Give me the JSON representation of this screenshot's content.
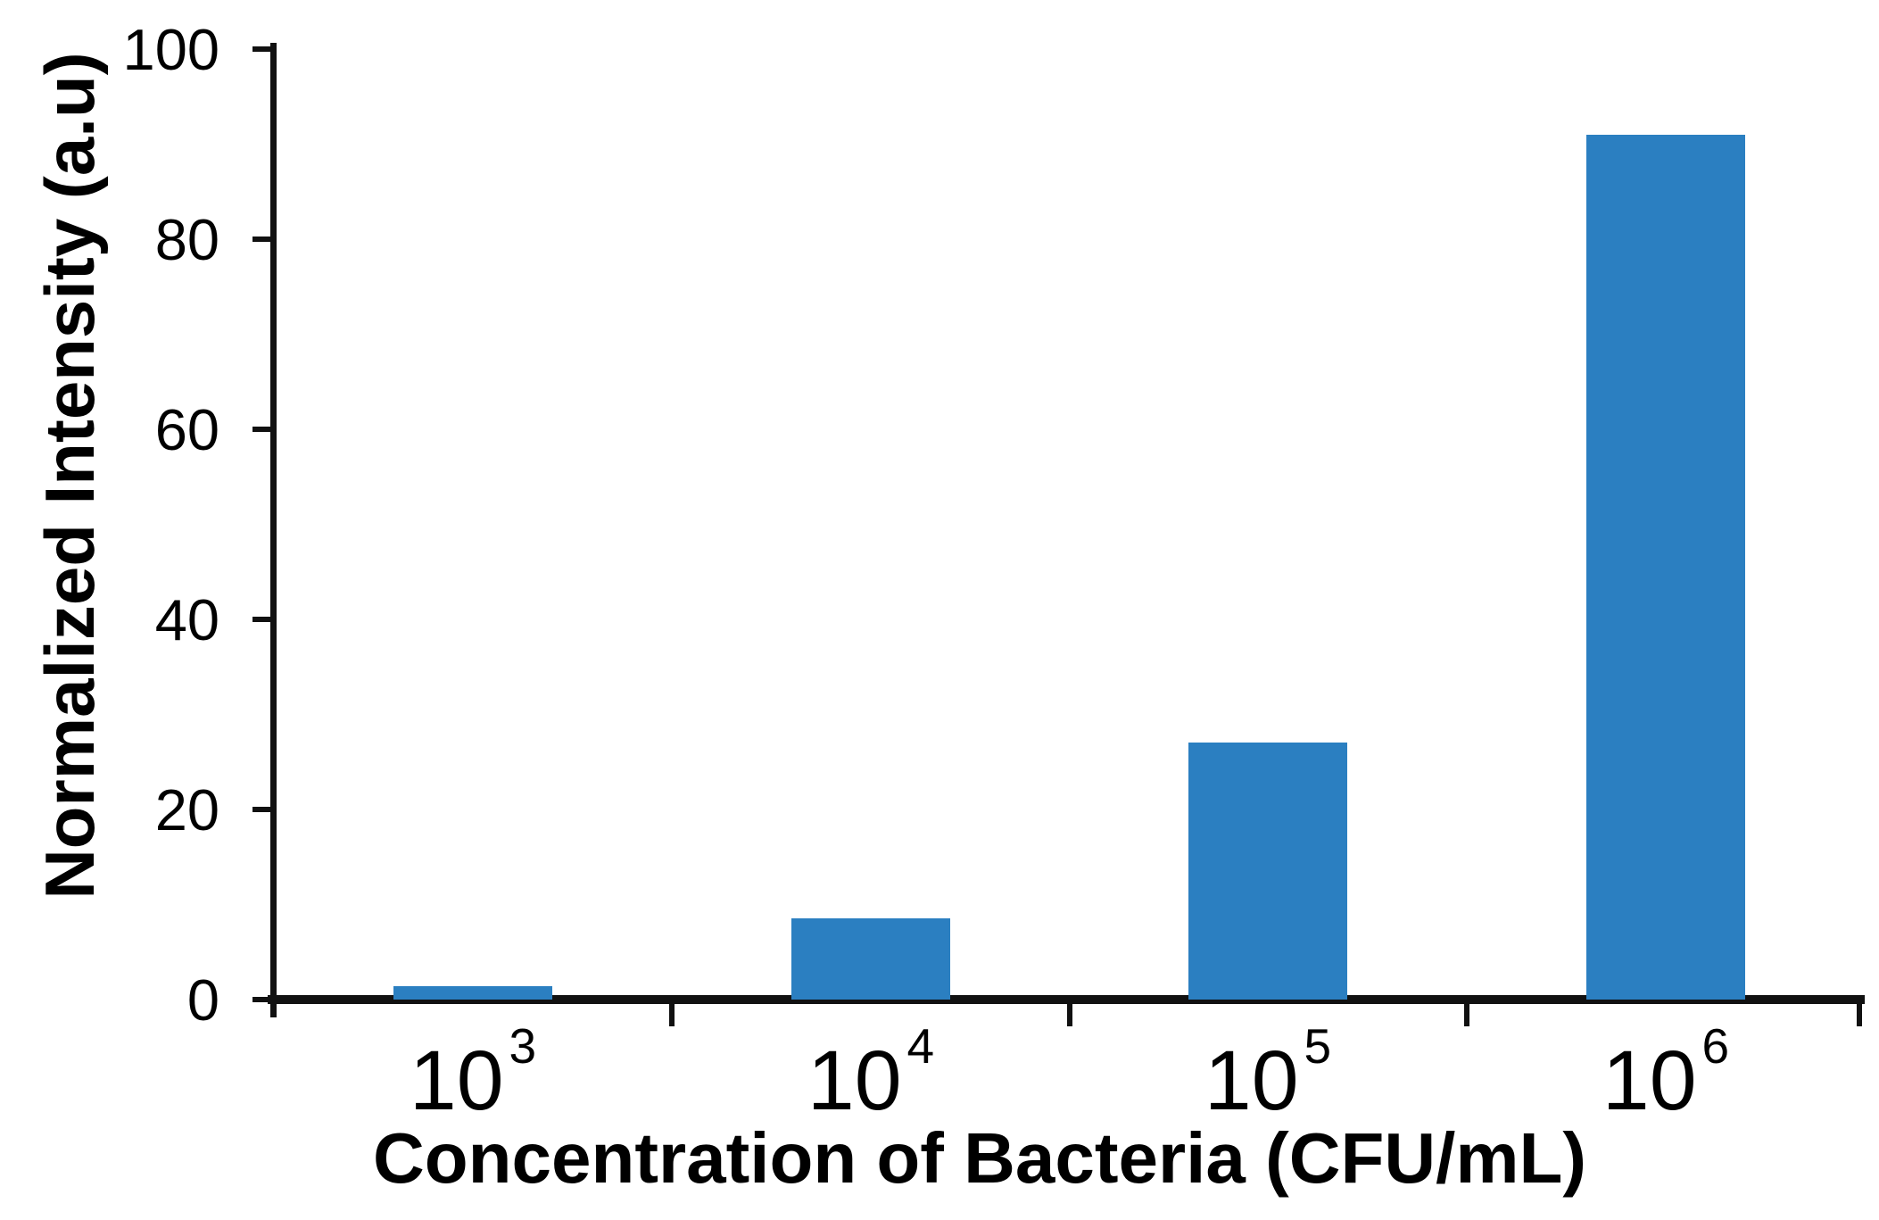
{
  "chart_data": {
    "type": "bar",
    "title": "",
    "xlabel": "Concentration of Bacteria (CFU/mL)",
    "ylabel": "Normalized Intensity (a.u)",
    "categories": [
      "10^3",
      "10^4",
      "10^5",
      "10^6"
    ],
    "values": [
      1.4,
      8.5,
      27,
      91
    ],
    "ylim": [
      0,
      100
    ],
    "yticks": [
      0,
      20,
      40,
      60,
      80,
      100
    ],
    "grid": false,
    "legend": "none",
    "bar_color": "#2b7fc1",
    "axis_color": "#111111",
    "text_color": "#000000",
    "background_color": "#ffffff"
  }
}
